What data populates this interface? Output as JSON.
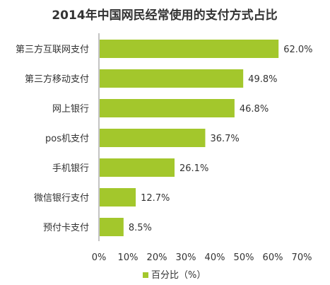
{
  "chart_data": {
    "type": "bar",
    "orientation": "horizontal",
    "title": "2014年中国网民经常使用的支付方式占比",
    "categories": [
      "第三方互联网支付",
      "第三方移动支付",
      "网上银行",
      "pos机支付",
      "手机银行",
      "微信银行支付",
      "预付卡支付"
    ],
    "series": [
      {
        "name": "百分比（%）",
        "values": [
          62.0,
          49.8,
          46.8,
          36.7,
          26.1,
          12.7,
          8.5
        ],
        "color": "#a3c72c"
      }
    ],
    "value_labels": [
      "62.0%",
      "49.8%",
      "46.8%",
      "36.7%",
      "26.1%",
      "12.7%",
      "8.5%"
    ],
    "xlim": [
      0,
      70
    ],
    "x_ticks": [
      0,
      10,
      20,
      30,
      40,
      50,
      60,
      70
    ],
    "x_tick_labels": [
      "0%",
      "10%",
      "20%",
      "30%",
      "40%",
      "50%",
      "60%",
      "70%"
    ],
    "grid": false,
    "legend_position": "bottom"
  }
}
